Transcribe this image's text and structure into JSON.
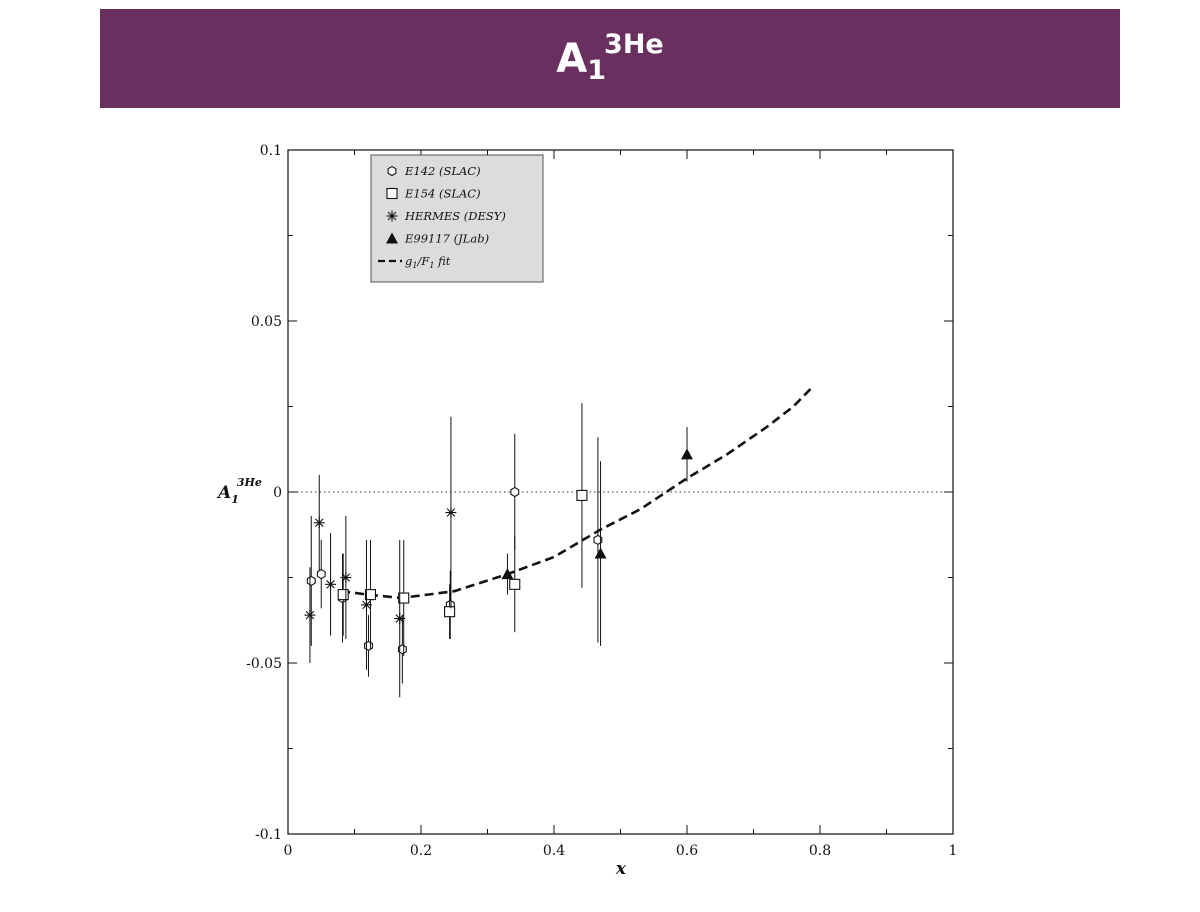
{
  "slide": {
    "title": {
      "main": "A",
      "sub": "1",
      "sup": "3He"
    }
  },
  "chart_data": {
    "type": "scatter",
    "xlabel": "x",
    "ylabel": {
      "main": "A",
      "sub": "1",
      "sup": "3He"
    },
    "xlim": [
      0,
      1
    ],
    "ylim": [
      -0.1,
      0.1
    ],
    "x_ticks": [
      "0",
      "0.2",
      "0.4",
      "0.6",
      "0.8",
      "1"
    ],
    "y_ticks": [
      "-0.1",
      "-0.05",
      "0",
      "0.05",
      "0.1"
    ],
    "reference_line": {
      "y": 0,
      "style": "dotted"
    },
    "legend_position": "top-left",
    "series": [
      {
        "name": "E142 (SLAC)",
        "marker": "hexagon-open",
        "points": [
          {
            "x": 0.035,
            "y": -0.026,
            "err": 0.019
          },
          {
            "x": 0.05,
            "y": -0.024,
            "err": 0.01
          },
          {
            "x": 0.082,
            "y": -0.031,
            "err": 0.013
          },
          {
            "x": 0.121,
            "y": -0.045,
            "err": 0.009
          },
          {
            "x": 0.172,
            "y": -0.046,
            "err": 0.01
          },
          {
            "x": 0.244,
            "y": -0.033,
            "err": 0.01
          },
          {
            "x": 0.341,
            "y": 0.0,
            "err": 0.017
          },
          {
            "x": 0.466,
            "y": -0.014,
            "err": 0.03
          }
        ]
      },
      {
        "name": "E154 (SLAC)",
        "marker": "square-open",
        "points": [
          {
            "x": 0.083,
            "y": -0.03,
            "err": 0.012
          },
          {
            "x": 0.124,
            "y": -0.03,
            "err": 0.016
          },
          {
            "x": 0.174,
            "y": -0.031,
            "err": 0.017
          },
          {
            "x": 0.243,
            "y": -0.035,
            "err": 0.008
          },
          {
            "x": 0.341,
            "y": -0.027,
            "err": 0.014
          },
          {
            "x": 0.442,
            "y": -0.001,
            "err": 0.027
          }
        ]
      },
      {
        "name": "HERMES (DESY)",
        "marker": "asterisk",
        "points": [
          {
            "x": 0.033,
            "y": -0.036,
            "err": 0.014
          },
          {
            "x": 0.047,
            "y": -0.009,
            "err": 0.014
          },
          {
            "x": 0.064,
            "y": -0.027,
            "err": 0.015
          },
          {
            "x": 0.087,
            "y": -0.025,
            "err": 0.018
          },
          {
            "x": 0.118,
            "y": -0.033,
            "err": 0.019
          },
          {
            "x": 0.168,
            "y": -0.037,
            "err": 0.023
          },
          {
            "x": 0.245,
            "y": -0.006,
            "err": 0.028
          }
        ]
      },
      {
        "name": "E99117 (JLab)",
        "marker": "triangle-filled",
        "points": [
          {
            "x": 0.33,
            "y": -0.024,
            "err": 0.006
          },
          {
            "x": 0.47,
            "y": -0.018,
            "err": 0.027
          },
          {
            "x": 0.6,
            "y": 0.011,
            "err": 0.008
          }
        ]
      }
    ],
    "fit": {
      "name_main": "g",
      "name_mid": "/F",
      "name_end": " fit",
      "name_sub": "1",
      "style": "dashed",
      "points": [
        {
          "x": 0.08,
          "y": -0.029
        },
        {
          "x": 0.12,
          "y": -0.03
        },
        {
          "x": 0.17,
          "y": -0.031
        },
        {
          "x": 0.25,
          "y": -0.029
        },
        {
          "x": 0.33,
          "y": -0.024
        },
        {
          "x": 0.4,
          "y": -0.019
        },
        {
          "x": 0.47,
          "y": -0.011
        },
        {
          "x": 0.53,
          "y": -0.005
        },
        {
          "x": 0.6,
          "y": 0.004
        },
        {
          "x": 0.66,
          "y": 0.011
        },
        {
          "x": 0.72,
          "y": 0.019
        },
        {
          "x": 0.76,
          "y": 0.025
        },
        {
          "x": 0.79,
          "y": 0.031
        }
      ]
    }
  }
}
